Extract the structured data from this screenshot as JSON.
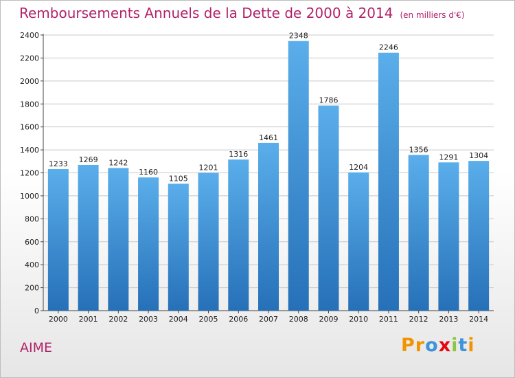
{
  "chart_data": {
    "type": "bar",
    "title": "Remboursements Annuels de la Dette de 2000 à 2014",
    "unit": "(en milliers d'€)",
    "categories": [
      "2000",
      "2001",
      "2002",
      "2003",
      "2004",
      "2005",
      "2006",
      "2007",
      "2008",
      "2009",
      "2010",
      "2011",
      "2012",
      "2013",
      "2014"
    ],
    "values": [
      1233,
      1269,
      1242,
      1160,
      1105,
      1201,
      1316,
      1461,
      2348,
      1786,
      1204,
      2246,
      1356,
      1291,
      1304
    ],
    "ylim": [
      0,
      2400
    ],
    "yticks": [
      0,
      200,
      400,
      600,
      800,
      1000,
      1200,
      1400,
      1600,
      1800,
      2000,
      2200,
      2400
    ],
    "grid": true,
    "bar_color": "#3f93da"
  },
  "footer": {
    "commune": "AIME",
    "logo": {
      "text": "Proxiti",
      "letters": [
        {
          "ch": "P",
          "color": "#f29400"
        },
        {
          "ch": "r",
          "color": "#f29400"
        },
        {
          "ch": "o",
          "color": "#3f93da"
        },
        {
          "ch": "x",
          "color": "#e30613"
        },
        {
          "ch": "i",
          "color": "#8dc63f"
        },
        {
          "ch": "t",
          "color": "#3f93da"
        },
        {
          "ch": "i",
          "color": "#f29400"
        }
      ]
    }
  }
}
